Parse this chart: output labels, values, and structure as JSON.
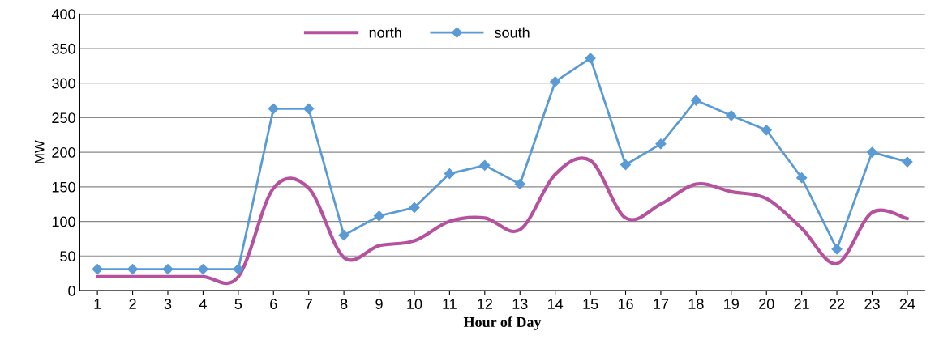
{
  "chart_data": {
    "type": "line",
    "xlabel": "Hour of Day",
    "ylabel": "MW",
    "categories": [
      "1",
      "2",
      "3",
      "4",
      "5",
      "6",
      "7",
      "8",
      "9",
      "10",
      "11",
      "12",
      "13",
      "14",
      "15",
      "16",
      "17",
      "18",
      "19",
      "20",
      "21",
      "22",
      "23",
      "24"
    ],
    "series": [
      {
        "name": "north",
        "color": "#b5519e",
        "marker": "none",
        "values": [
          20,
          20,
          20,
          20,
          20,
          148,
          148,
          48,
          65,
          72,
          100,
          105,
          88,
          168,
          188,
          105,
          125,
          154,
          143,
          133,
          90,
          39,
          113,
          104
        ]
      },
      {
        "name": "south",
        "color": "#5b9bd5",
        "marker": "diamond",
        "values": [
          31,
          31,
          31,
          31,
          31,
          263,
          263,
          80,
          108,
          120,
          169,
          181,
          154,
          302,
          336,
          182,
          212,
          275,
          253,
          232,
          163,
          60,
          200,
          186
        ]
      }
    ],
    "ylim": [
      0,
      400
    ],
    "yticks": [
      0,
      50,
      100,
      150,
      200,
      250,
      300,
      350,
      400
    ],
    "grid": "y",
    "legend": "top"
  }
}
